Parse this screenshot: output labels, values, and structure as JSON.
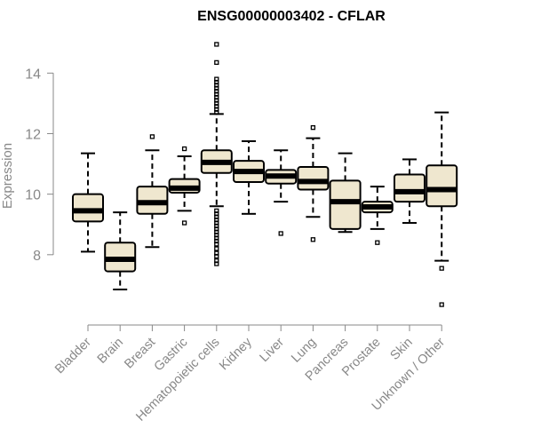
{
  "chart_data": {
    "type": "box",
    "title": "ENSG00000003402 - CFLAR",
    "xlabel": "",
    "ylabel": "Expression",
    "ylim": [
      6.0,
      15.3
    ],
    "yticks": [
      8,
      10,
      12,
      14
    ],
    "box_fill": "#efe7cf",
    "categories": [
      "Bladder",
      "Brain",
      "Breast",
      "Gastric",
      "Hematopoietic cells",
      "Kidney",
      "Liver",
      "Lung",
      "Pancreas",
      "Prostate",
      "Skin",
      "Unknown / Other"
    ],
    "boxes": [
      {
        "min": 8.1,
        "q1": 9.1,
        "median": 9.45,
        "q3": 10.0,
        "max": 11.35,
        "outliers": []
      },
      {
        "min": 6.85,
        "q1": 7.45,
        "median": 7.85,
        "q3": 8.4,
        "max": 9.4,
        "outliers": []
      },
      {
        "min": 8.25,
        "q1": 9.35,
        "median": 9.72,
        "q3": 10.25,
        "max": 11.45,
        "outliers": [
          11.9
        ]
      },
      {
        "min": 9.45,
        "q1": 10.05,
        "median": 10.2,
        "q3": 10.5,
        "max": 11.25,
        "outliers": [
          9.05,
          11.5
        ]
      },
      {
        "min": 9.6,
        "q1": 10.7,
        "median": 11.05,
        "q3": 11.45,
        "max": 12.65,
        "outliers": [
          7.7,
          7.8,
          7.95,
          8.05,
          8.2,
          8.35,
          8.45,
          8.55,
          8.65,
          8.75,
          8.85,
          8.95,
          9.05,
          9.15,
          9.25,
          9.35,
          9.45,
          12.7,
          12.8,
          12.9,
          13.0,
          13.1,
          13.2,
          13.3,
          13.4,
          13.5,
          13.6,
          13.7,
          13.8,
          14.35,
          14.95
        ]
      },
      {
        "min": 9.35,
        "q1": 10.4,
        "median": 10.75,
        "q3": 11.1,
        "max": 11.75,
        "outliers": []
      },
      {
        "min": 9.75,
        "q1": 10.35,
        "median": 10.6,
        "q3": 10.8,
        "max": 11.45,
        "outliers": [
          8.7
        ]
      },
      {
        "min": 9.25,
        "q1": 10.15,
        "median": 10.42,
        "q3": 10.9,
        "max": 11.85,
        "outliers": [
          8.5,
          12.2
        ]
      },
      {
        "min": 8.75,
        "q1": 8.85,
        "median": 9.75,
        "q3": 10.45,
        "max": 11.35,
        "outliers": []
      },
      {
        "min": 8.85,
        "q1": 9.4,
        "median": 9.58,
        "q3": 9.75,
        "max": 10.25,
        "outliers": [
          8.4
        ]
      },
      {
        "min": 9.05,
        "q1": 9.75,
        "median": 10.08,
        "q3": 10.65,
        "max": 11.15,
        "outliers": []
      },
      {
        "min": 7.8,
        "q1": 9.6,
        "median": 10.15,
        "q3": 10.95,
        "max": 12.7,
        "outliers": [
          7.55,
          6.35
        ]
      }
    ]
  }
}
